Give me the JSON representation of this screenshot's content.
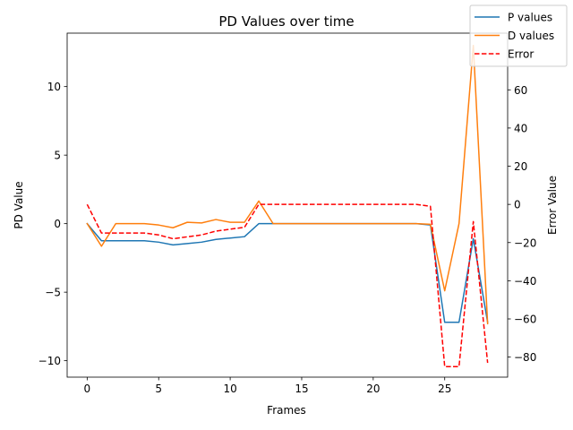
{
  "chart_data": {
    "type": "line",
    "title": "PD Values over time",
    "xlabel": "Frames",
    "ylabel_left": "PD Value",
    "ylabel_right": "Error Value",
    "xlim": [
      -1.4,
      29.4
    ],
    "ylim_left": [
      -11.2,
      13.9
    ],
    "ylim_right": [
      -90.5,
      89.7
    ],
    "x_ticks": [
      0,
      5,
      10,
      15,
      20,
      25
    ],
    "y_ticks_left": [
      -10,
      -5,
      0,
      5,
      10
    ],
    "y_ticks_right": [
      -80,
      -60,
      -40,
      -20,
      0,
      20,
      40,
      60
    ],
    "grid": false,
    "legend_position": "upper right",
    "x": [
      0,
      1,
      2,
      3,
      4,
      5,
      6,
      7,
      8,
      9,
      10,
      11,
      12,
      13,
      14,
      15,
      16,
      17,
      18,
      19,
      20,
      21,
      22,
      23,
      24,
      25,
      26,
      27,
      28
    ],
    "series": [
      {
        "name": "P values",
        "axis": "left",
        "color": "#1f77b4",
        "style": "solid",
        "values": [
          0,
          -1.25,
          -1.25,
          -1.25,
          -1.25,
          -1.35,
          -1.55,
          -1.45,
          -1.35,
          -1.15,
          -1.05,
          -0.95,
          0,
          0,
          0,
          0,
          0,
          0,
          0,
          0,
          0,
          0,
          0,
          0,
          -0.1,
          -7.2,
          -7.2,
          -1.1,
          -7.2
        ]
      },
      {
        "name": "D values",
        "axis": "left",
        "color": "#ff7f0e",
        "style": "solid",
        "values": [
          0,
          -1.65,
          0,
          0,
          0,
          -0.1,
          -0.3,
          0.1,
          0.05,
          0.3,
          0.1,
          0.1,
          1.65,
          0,
          0,
          0,
          0,
          0,
          0,
          0,
          0,
          0,
          0,
          0,
          -0.05,
          -4.9,
          0,
          13.0,
          -7.3
        ]
      },
      {
        "name": "Error",
        "axis": "right",
        "color": "#ff0000",
        "style": "dashed",
        "values": [
          0,
          -15,
          -15,
          -15,
          -15,
          -16,
          -18,
          -17,
          -16,
          -14,
          -13,
          -12,
          0,
          0,
          0,
          0,
          0,
          0,
          0,
          0,
          0,
          0,
          0,
          0,
          -1,
          -85,
          -85,
          -9,
          -83
        ]
      }
    ]
  }
}
